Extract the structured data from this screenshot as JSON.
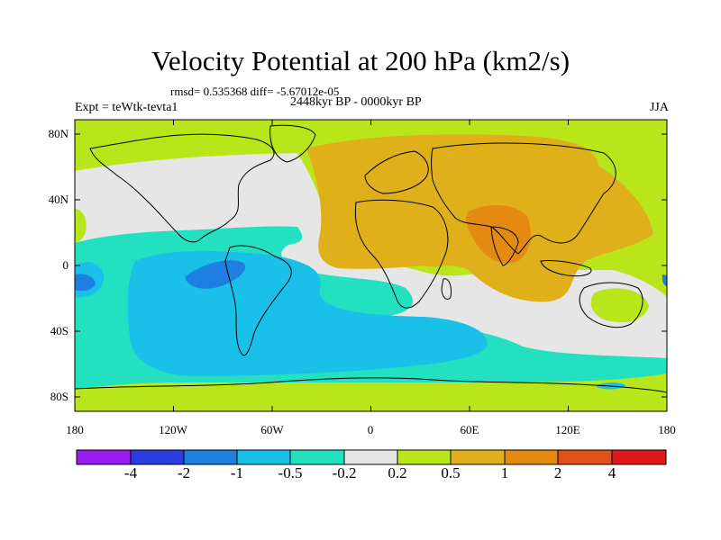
{
  "title": "Velocity Potential at 200 hPa (km2/s)",
  "stats": "rmsd= 0.535368 diff= -5.67012e-05",
  "experiment": "Expt = teWtk-tevta1",
  "period": "2448kyr BP - 0000kyr BP",
  "season": "JJA",
  "y_axis_labels": [
    "80N",
    "40N",
    "0",
    "40S",
    "80S"
  ],
  "x_axis_labels": [
    "180",
    "120W",
    "60W",
    "0",
    "60E",
    "120E",
    "180"
  ],
  "colorbar": {
    "labels": [
      "-4",
      "-2",
      "-1",
      "-0.5",
      "-0.2",
      "0.2",
      "0.5",
      "1",
      "2",
      "4"
    ],
    "colors": [
      "#9a1df0",
      "#2a3ee0",
      "#1f7fe0",
      "#19c0e8",
      "#22e0c0",
      "#e6e6e6",
      "#b8e61a",
      "#e0b01a",
      "#e58a10",
      "#e0501a",
      "#e01a1a"
    ]
  },
  "map_colors": {
    "strong_negative": "#1f7fe0",
    "negative": "#19c0e8",
    "weak_negative": "#22e0c0",
    "neutral": "#e6e6e6",
    "weak_positive": "#b8e61a",
    "positive": "#e0b01a",
    "strong_positive": "#e58a10"
  }
}
